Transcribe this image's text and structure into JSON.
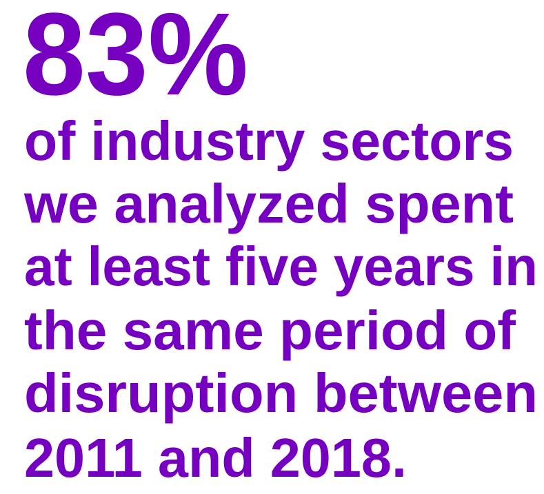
{
  "stat": {
    "value": "83%",
    "lines": [
      "of industry sectors",
      "we analyzed spent",
      "at least five years in",
      "the same period of",
      "disruption between",
      "2011 and 2018."
    ]
  }
}
